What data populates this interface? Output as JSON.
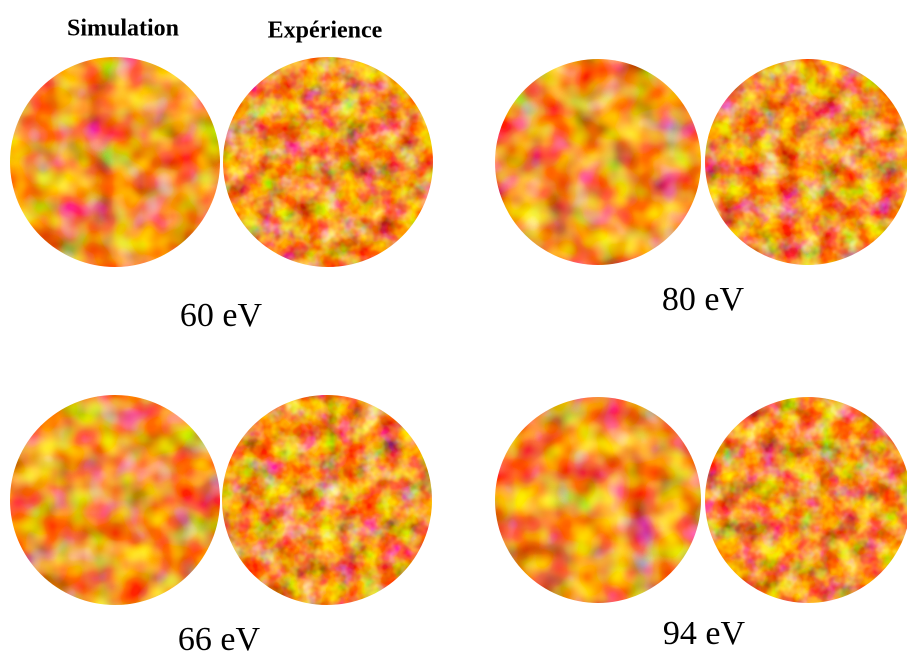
{
  "headers": {
    "simulation": "Simulation",
    "experience": "Expérience"
  },
  "panels": [
    {
      "label": "60 eV"
    },
    {
      "label": "80 eV"
    },
    {
      "label": "66 eV"
    },
    {
      "label": "94 eV"
    }
  ]
}
